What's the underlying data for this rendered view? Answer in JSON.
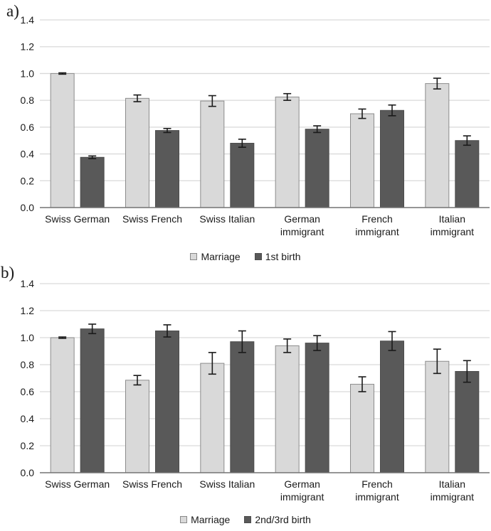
{
  "figure": {
    "panel_a_letter": "a)",
    "panel_b_letter": "b)"
  },
  "colors": {
    "light_bar_fill": "#d9d9d9",
    "light_bar_border": "#8c8c8c",
    "dark_bar_fill": "#595959",
    "dark_bar_border": "#4d4d4d",
    "gridline": "#d9d9d9",
    "axis_line": "#737373",
    "error_bar": "#1a1a1a",
    "text": "#1a1a1a"
  },
  "chart_data": [
    {
      "panel_label": "a)",
      "type": "bar",
      "categories": [
        "Swiss German",
        "Swiss French",
        "Swiss Italian",
        "German immigrant",
        "French immigrant",
        "Italian immigrant"
      ],
      "category_lines": [
        [
          "Swiss German"
        ],
        [
          "Swiss French"
        ],
        [
          "Swiss Italian"
        ],
        [
          "German",
          "immigrant"
        ],
        [
          "French",
          "immigrant"
        ],
        [
          "Italian",
          "immigrant"
        ]
      ],
      "series": [
        {
          "name": "Marriage",
          "fill": "#d9d9d9",
          "stroke": "#8c8c8c",
          "values": [
            1.0,
            0.815,
            0.795,
            0.825,
            0.7,
            0.925
          ],
          "errors": [
            0.005,
            0.025,
            0.04,
            0.025,
            0.035,
            0.04
          ]
        },
        {
          "name": "1st birth",
          "fill": "#595959",
          "stroke": "#4d4d4d",
          "values": [
            0.375,
            0.575,
            0.48,
            0.585,
            0.725,
            0.5
          ],
          "errors": [
            0.01,
            0.015,
            0.03,
            0.025,
            0.04,
            0.035
          ]
        }
      ],
      "ylim": [
        0,
        1.4
      ],
      "ytick_step": 0.2,
      "ytick_labels": [
        "0.0",
        "0.2",
        "0.4",
        "0.6",
        "0.8",
        "1.0",
        "1.2",
        "1.4"
      ],
      "grid": true,
      "error_bars": true,
      "legend_position": "bottom",
      "xlabel": "",
      "ylabel": ""
    },
    {
      "panel_label": "b)",
      "type": "bar",
      "categories": [
        "Swiss German",
        "Swiss French",
        "Swiss Italian",
        "German immigrant",
        "French immigrant",
        "Italian immigrant"
      ],
      "category_lines": [
        [
          "Swiss German"
        ],
        [
          "Swiss French"
        ],
        [
          "Swiss Italian"
        ],
        [
          "German",
          "immigrant"
        ],
        [
          "French",
          "immigrant"
        ],
        [
          "Italian",
          "immigrant"
        ]
      ],
      "series": [
        {
          "name": "Marriage",
          "fill": "#d9d9d9",
          "stroke": "#8c8c8c",
          "values": [
            1.0,
            0.685,
            0.81,
            0.94,
            0.655,
            0.825
          ],
          "errors": [
            0.005,
            0.035,
            0.08,
            0.05,
            0.055,
            0.09
          ]
        },
        {
          "name": "2nd/3rd birth",
          "fill": "#595959",
          "stroke": "#4d4d4d",
          "values": [
            1.065,
            1.05,
            0.97,
            0.96,
            0.975,
            0.75
          ],
          "errors": [
            0.035,
            0.045,
            0.08,
            0.055,
            0.07,
            0.08
          ]
        }
      ],
      "ylim": [
        0,
        1.4
      ],
      "ytick_step": 0.2,
      "ytick_labels": [
        "0.0",
        "0.2",
        "0.4",
        "0.6",
        "0.8",
        "1.0",
        "1.2",
        "1.4"
      ],
      "grid": true,
      "error_bars": true,
      "legend_position": "bottom",
      "xlabel": "",
      "ylabel": ""
    }
  ]
}
